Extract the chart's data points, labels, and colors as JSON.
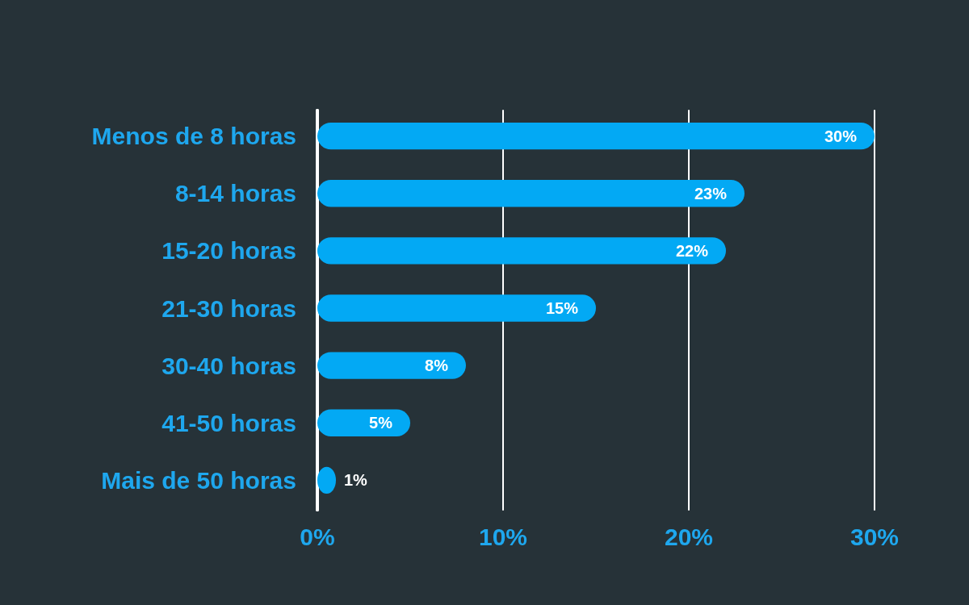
{
  "chart_data": {
    "type": "bar",
    "orientation": "horizontal",
    "categories": [
      "Menos de 8 horas",
      "8-14 horas",
      "15-20 horas",
      "21-30 horas",
      "30-40 horas",
      "41-50 horas",
      "Mais de 50 horas"
    ],
    "values": [
      30,
      23,
      22,
      15,
      8,
      5,
      1
    ],
    "color": "#03a9f4",
    "xlim": [
      0,
      30
    ],
    "xticks": [
      {
        "value": 0,
        "label": "0%"
      },
      {
        "value": 10,
        "label": "10%"
      },
      {
        "value": 20,
        "label": "20%"
      },
      {
        "value": 30,
        "label": "30%"
      }
    ],
    "value_labels": [
      "30%",
      "23%",
      "22%",
      "15%",
      "8%",
      "5%",
      "1%"
    ],
    "grid": "x"
  }
}
